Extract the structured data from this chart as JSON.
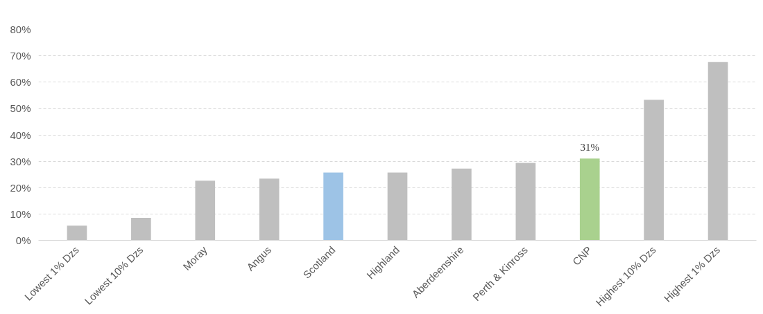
{
  "chart_data": {
    "type": "bar",
    "categories": [
      "Lowest 1% Dzs",
      "Lowest 10% Dzs",
      "Moray",
      "Angus",
      "Scotland",
      "Highland",
      "Aberdeenshire",
      "Perth & Kinross",
      "CNP",
      "Highest 10% Dzs",
      "Highest 1% Dzs"
    ],
    "values": [
      5.6,
      8.5,
      22.6,
      23.4,
      25.7,
      25.7,
      27.2,
      29.4,
      31,
      53.3,
      67.6
    ],
    "colors": [
      "#bfbfbf",
      "#bfbfbf",
      "#bfbfbf",
      "#bfbfbf",
      "#9dc3e6",
      "#bfbfbf",
      "#bfbfbf",
      "#bfbfbf",
      "#a9d18e",
      "#bfbfbf",
      "#bfbfbf"
    ],
    "value_labels": [
      null,
      null,
      null,
      null,
      null,
      null,
      null,
      null,
      "31%",
      null,
      null
    ],
    "ylim": [
      0,
      80
    ],
    "yticks": [
      {
        "value": 0,
        "label": "0%"
      },
      {
        "value": 10,
        "label": "10%"
      },
      {
        "value": 20,
        "label": "20%"
      },
      {
        "value": 30,
        "label": "30%"
      },
      {
        "value": 40,
        "label": "40%"
      },
      {
        "value": 50,
        "label": "50%"
      },
      {
        "value": 60,
        "label": "60%"
      },
      {
        "value": 70,
        "label": "70%"
      },
      {
        "value": 80,
        "label": "80%"
      }
    ],
    "grid": "y"
  }
}
